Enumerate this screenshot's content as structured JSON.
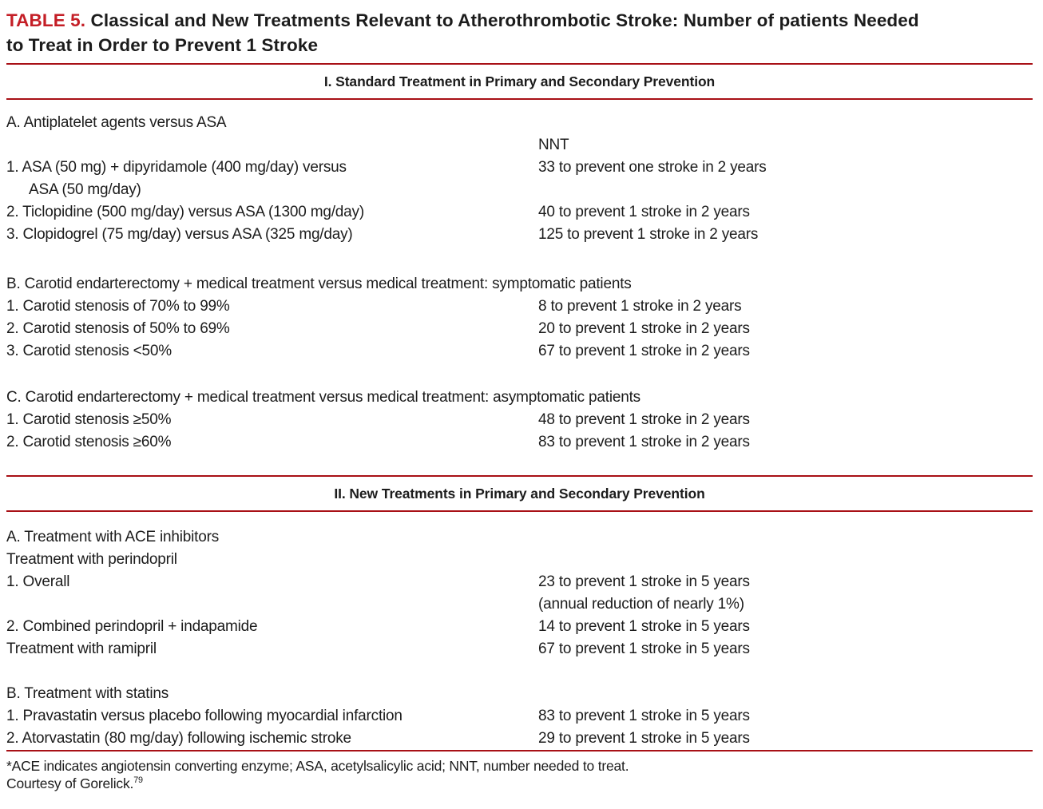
{
  "colors": {
    "title-red": "#c41e26",
    "rule-red": "#a81016"
  },
  "title": {
    "prefix": "TABLE 5.",
    "line1": "Classical and New Treatments Relevant to Atherothrombotic Stroke: Number of patients Needed",
    "line2": "to Treat in Order to Prevent 1 Stroke"
  },
  "sections": [
    {
      "header": "I. Standard Treatment in Primary and Secondary Prevention",
      "groups": [
        {
          "heading": "A. Antiplatelet agents versus ASA",
          "col_header": "NNT",
          "rows": [
            {
              "label": "1. ASA (50 mg) + dipyridamole (400 mg/day) versus",
              "label_cont": "ASA (50 mg/day)",
              "value": "33 to prevent one stroke in 2 years"
            },
            {
              "label": "2. Ticlopidine (500 mg/day) versus ASA (1300 mg/day)",
              "value": "40 to prevent 1 stroke in 2 years"
            },
            {
              "label": "3. Clopidogrel (75 mg/day) versus ASA (325 mg/day)",
              "value": "125 to prevent 1 stroke in 2 years"
            }
          ]
        },
        {
          "heading": "B. Carotid endarterectomy + medical treatment versus medical treatment: symptomatic patients",
          "rows": [
            {
              "label": "1. Carotid stenosis of 70% to 99%",
              "value": "8 to prevent 1 stroke in 2 years"
            },
            {
              "label": "2. Carotid stenosis of 50% to 69%",
              "value": "20 to prevent 1 stroke in 2 years"
            },
            {
              "label": "3. Carotid stenosis <50%",
              "value": "67 to prevent 1 stroke in 2 years"
            }
          ]
        },
        {
          "heading": "C. Carotid endarterectomy + medical treatment versus medical treatment: asymptomatic patients",
          "rows": [
            {
              "label": "1. Carotid stenosis ≥50%",
              "value": "48 to prevent 1 stroke in 2 years"
            },
            {
              "label": "2. Carotid stenosis ≥60%",
              "value": "83 to prevent 1 stroke in 2 years"
            }
          ]
        }
      ]
    },
    {
      "header": "II. New Treatments in Primary and Secondary Prevention",
      "groups": [
        {
          "heading": "A. Treatment with ACE inhibitors",
          "subheading": "Treatment with perindopril",
          "rows": [
            {
              "label": "1. Overall",
              "value": "23 to prevent 1 stroke in 5 years",
              "value_cont": "(annual reduction of nearly 1%)"
            },
            {
              "label": "2. Combined perindopril + indapamide",
              "value": "14 to prevent 1 stroke in 5 years"
            },
            {
              "label": "Treatment with ramipril",
              "value": "67 to prevent 1 stroke in 5 years"
            }
          ]
        },
        {
          "heading": "B. Treatment with statins",
          "rows": [
            {
              "label": "1. Pravastatin versus placebo following myocardial infarction",
              "value": "83 to prevent 1 stroke in 5 years"
            },
            {
              "label": "2. Atorvastatin (80 mg/day) following ischemic stroke",
              "value": "29 to prevent 1 stroke in 5 years"
            }
          ]
        }
      ]
    }
  ],
  "footnotes": {
    "line1": "*ACE indicates angiotensin converting enzyme; ASA, acetylsalicylic acid; NNT, number needed to treat.",
    "line2": "Courtesy of Gorelick.",
    "line2_ref": "79"
  }
}
